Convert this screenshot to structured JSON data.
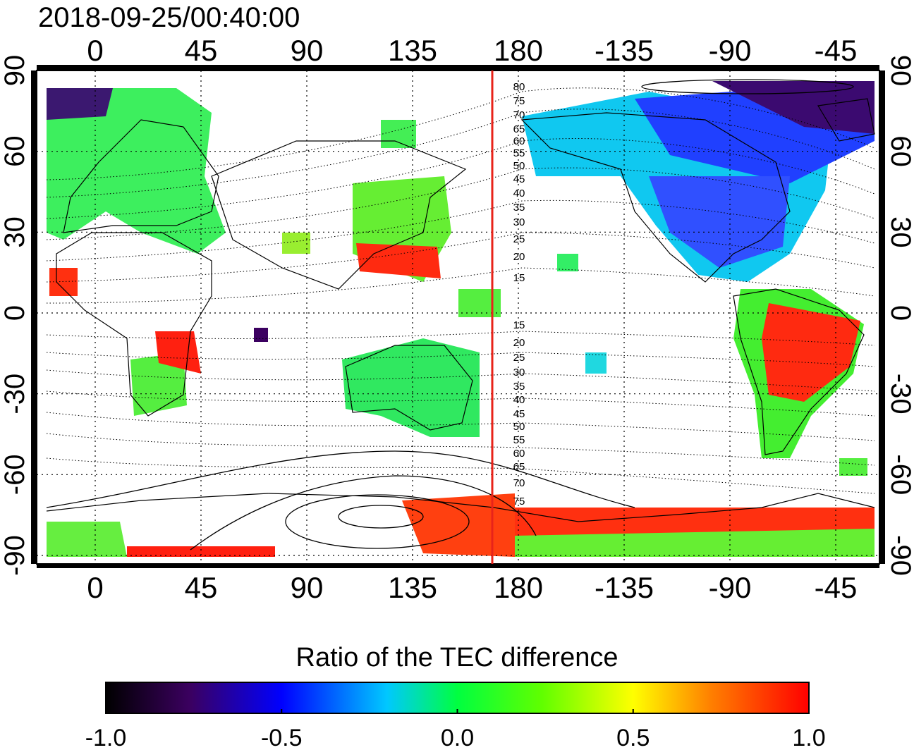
{
  "timestamp": "2018-09-25/00:40:00",
  "map": {
    "lon_ticks": [
      "0",
      "45",
      "90",
      "135",
      "180",
      "-135",
      "-90",
      "-45"
    ],
    "lat_ticks_left": [
      "90",
      "60",
      "30",
      "0",
      "-30",
      "-60",
      "-90"
    ],
    "lat_ticks_right": [
      "90",
      "60",
      "30",
      "0",
      "-30",
      "-60",
      "-90"
    ],
    "contour_labels_north": [
      "80",
      "75",
      "70",
      "65",
      "60",
      "55",
      "50",
      "45",
      "40",
      "35",
      "30",
      "25",
      "20",
      "15"
    ],
    "contour_labels_south": [
      "15",
      "20",
      "25",
      "30",
      "35",
      "40",
      "45",
      "50",
      "55",
      "60",
      "65",
      "70",
      "75"
    ],
    "meridian_marker_color": "#e8231a",
    "meridian_marker_lon": 170
  },
  "colorbar": {
    "title": "Ratio of the TEC difference",
    "tick_labels": [
      "-1.0",
      "-0.5",
      "0.0",
      "0.5",
      "1.0"
    ],
    "range": [
      -1.0,
      1.0
    ],
    "colors": [
      "#000000",
      "#3b0060",
      "#0000ff",
      "#00e8ff",
      "#00ff40",
      "#ffff00",
      "#ff8000",
      "#ff0000"
    ]
  }
}
